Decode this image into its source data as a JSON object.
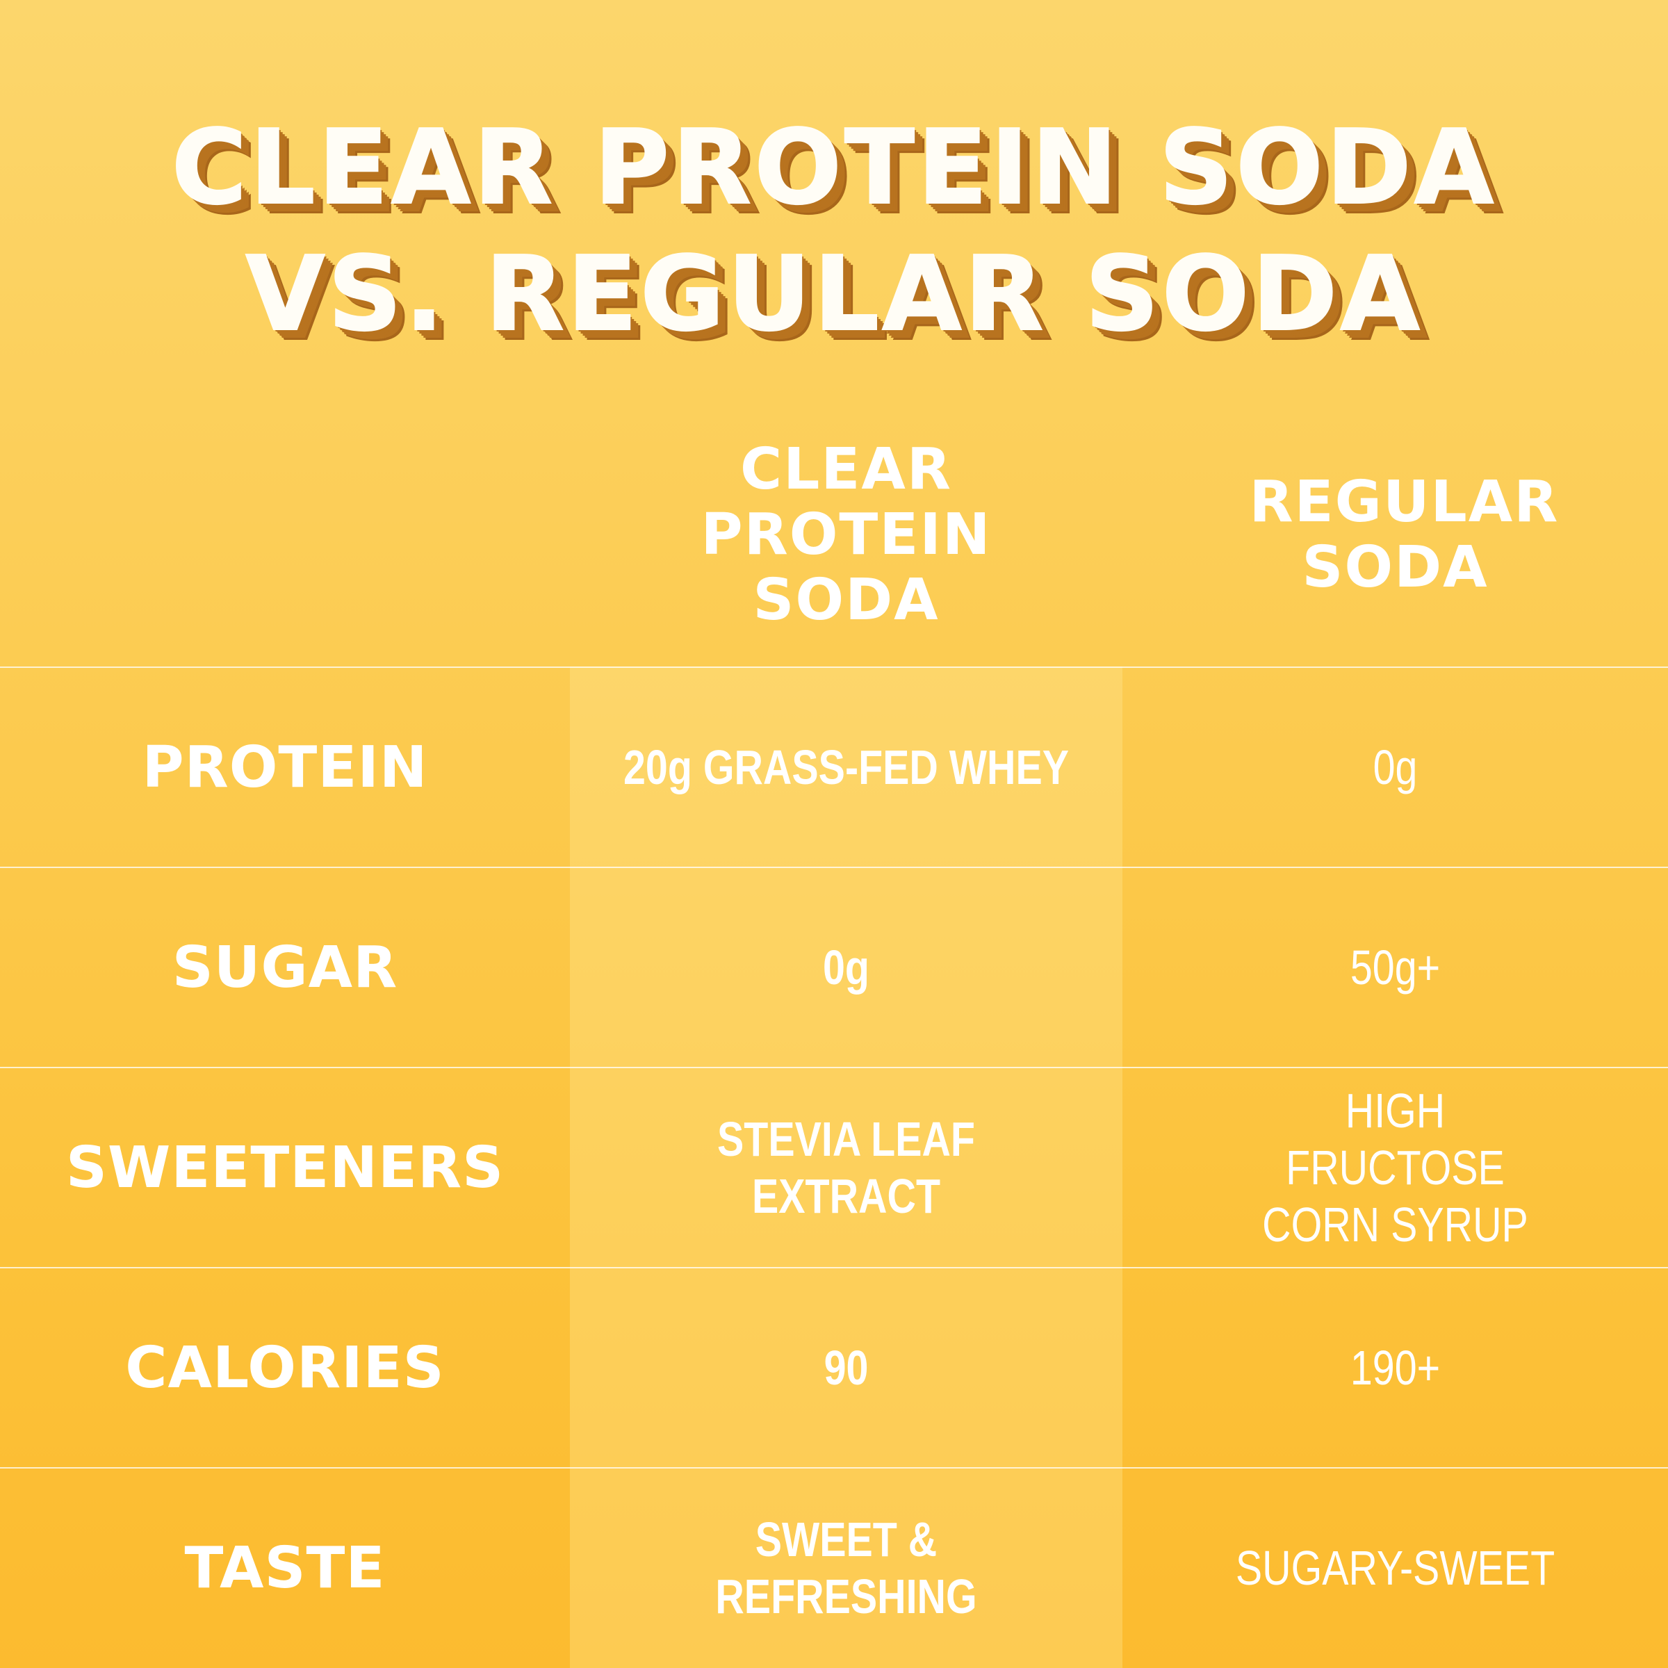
{
  "title": {
    "line1": "CLEAR PROTEIN SODA",
    "line2": "VS. REGULAR SODA"
  },
  "columns": {
    "clear_protein_soda": "CLEAR PROTEIN SODA",
    "regular_soda": "REGULAR SODA"
  },
  "rows": [
    {
      "label": "PROTEIN",
      "clear_protein_soda": "20g GRASS-FED WHEY",
      "regular_soda": "0g"
    },
    {
      "label": "SUGAR",
      "clear_protein_soda": "0g",
      "regular_soda": "50g+"
    },
    {
      "label": "SWEETENERS",
      "clear_protein_soda": "STEVIA LEAF EXTRACT",
      "regular_soda": "HIGH FRUCTOSE CORN SYRUP"
    },
    {
      "label": "CALORIES",
      "clear_protein_soda": "90",
      "regular_soda": "190+"
    },
    {
      "label": "TASTE",
      "clear_protein_soda": "SWEET & REFRESHING",
      "regular_soda": "SUGARY-SWEET"
    }
  ],
  "colors": {
    "background_top": "#fcd66c",
    "background_bottom": "#fcbb2f",
    "text": "#ffffff",
    "title_shadow": "#b8731f"
  }
}
